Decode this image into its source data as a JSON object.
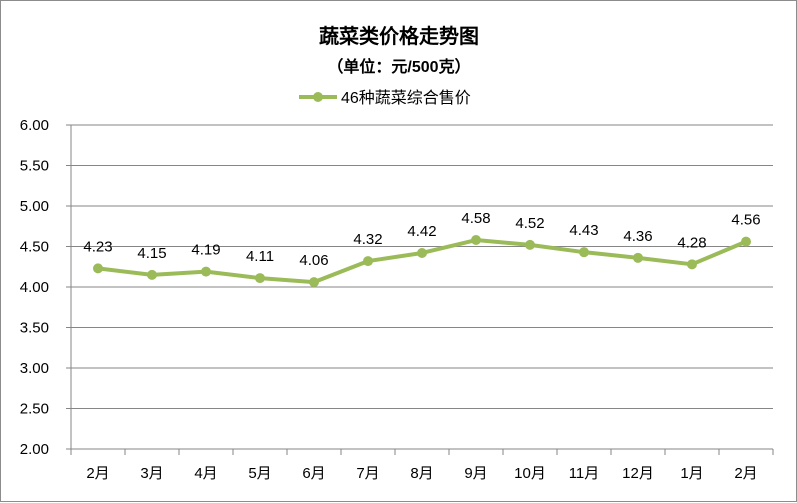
{
  "chart_data": {
    "type": "line",
    "title": "蔬菜类价格走势图",
    "subtitle": "（单位：元/500克）",
    "categories": [
      "2月",
      "3月",
      "4月",
      "5月",
      "6月",
      "7月",
      "8月",
      "9月",
      "10月",
      "11月",
      "12月",
      "1月",
      "2月"
    ],
    "series": [
      {
        "name": "46种蔬菜综合售价",
        "values": [
          4.23,
          4.15,
          4.19,
          4.11,
          4.06,
          4.32,
          4.42,
          4.58,
          4.52,
          4.43,
          4.36,
          4.28,
          4.56
        ],
        "color": "#9bbb59"
      }
    ],
    "ylim": [
      2.0,
      6.0
    ],
    "ystep": 0.5,
    "grid": true,
    "legend": "top-center",
    "data_labels": true
  }
}
